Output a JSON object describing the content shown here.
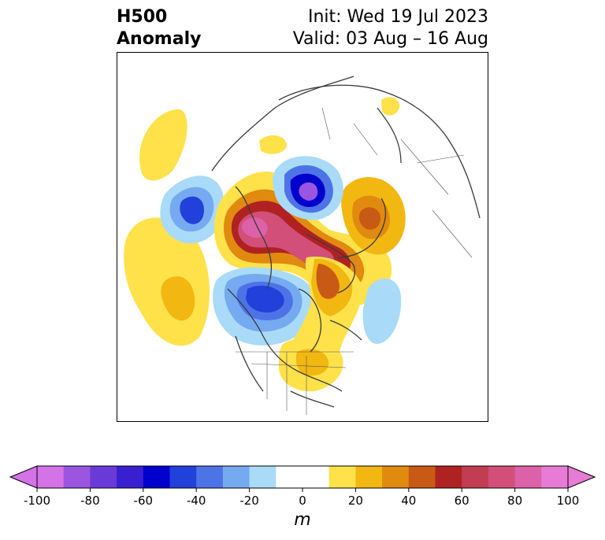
{
  "title": {
    "left_line1": "H500",
    "left_line2": "Anomaly",
    "right_line1": "Init: Wed 19 Jul 2023",
    "right_line2": "Valid: 03 Aug – 16 Aug"
  },
  "colorbar": {
    "unit": "m",
    "ticks": [
      "-100",
      "-80",
      "-60",
      "-40",
      "-20",
      "0",
      "20",
      "40",
      "60",
      "80",
      "100"
    ],
    "colors": [
      "#d473e6",
      "#9b55e0",
      "#6a3ad9",
      "#3a1fd0",
      "#0000cc",
      "#2240da",
      "#4e73e6",
      "#76aaf0",
      "#a9dbf8",
      "#ffffff",
      "#ffffff",
      "#ffe14a",
      "#f2b710",
      "#e08a10",
      "#c85a16",
      "#b02222",
      "#c23c52",
      "#d24f7a",
      "#dc61a8",
      "#e77bd6"
    ],
    "extend": "both"
  },
  "map": {
    "projection": "north-polar-stereographic",
    "features": [
      "coastlines",
      "country-borders",
      "us-state-borders"
    ]
  }
}
